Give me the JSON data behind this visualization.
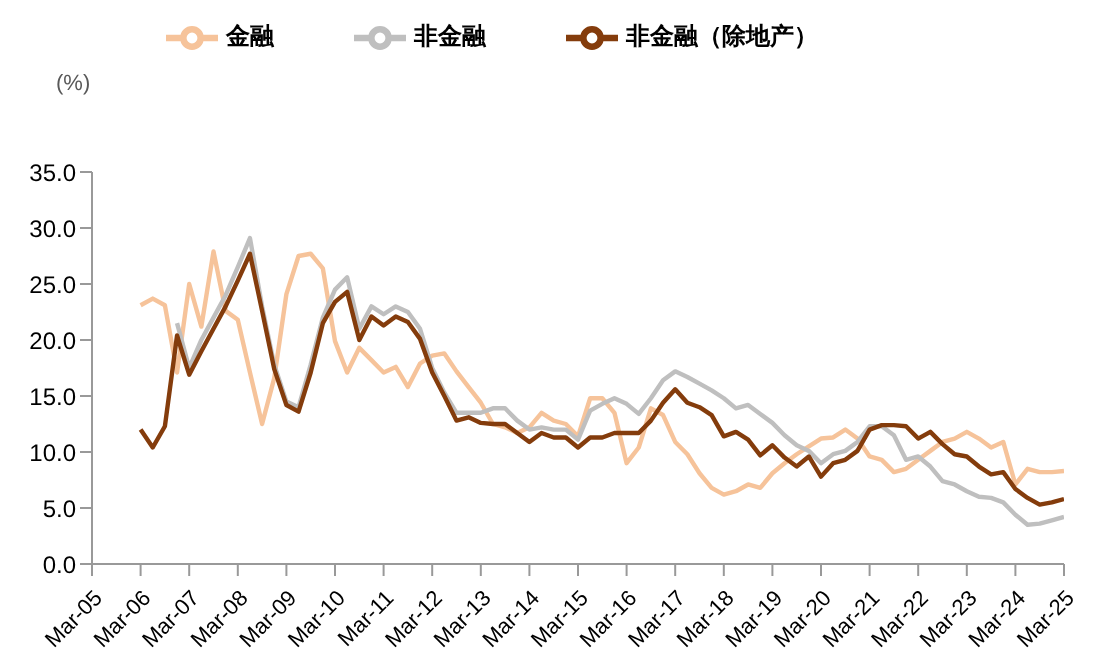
{
  "chart_data": {
    "type": "line",
    "ylabel": "(%)",
    "legend": "top",
    "grid": false,
    "marker": "none",
    "line_style": "solid",
    "x": [
      "2006-03",
      "2006-06",
      "2006-09",
      "2006-12",
      "2007-03",
      "2007-06",
      "2007-09",
      "2007-12",
      "2008-03",
      "2008-06",
      "2008-09",
      "2008-12",
      "2009-03",
      "2009-06",
      "2009-09",
      "2009-12",
      "2010-03",
      "2010-06",
      "2010-09",
      "2010-12",
      "2011-03",
      "2011-06",
      "2011-09",
      "2011-12",
      "2012-03",
      "2012-06",
      "2012-09",
      "2012-12",
      "2013-03",
      "2013-06",
      "2013-09",
      "2013-12",
      "2014-03",
      "2014-06",
      "2014-09",
      "2014-12",
      "2015-03",
      "2015-06",
      "2015-09",
      "2015-12",
      "2016-03",
      "2016-06",
      "2016-09",
      "2016-12",
      "2017-03",
      "2017-06",
      "2017-09",
      "2017-12",
      "2018-03",
      "2018-06",
      "2018-09",
      "2018-12",
      "2019-03",
      "2019-06",
      "2019-09",
      "2019-12",
      "2020-03",
      "2020-06",
      "2020-09",
      "2020-12",
      "2021-03",
      "2021-06",
      "2021-09",
      "2021-12",
      "2022-03",
      "2022-06",
      "2022-09",
      "2022-12",
      "2023-03",
      "2023-06",
      "2023-09",
      "2023-12",
      "2024-03",
      "2024-06",
      "2024-09",
      "2024-12",
      "2025-03"
    ],
    "xlim": [
      "2005-03",
      "2025-03"
    ],
    "xticks": [
      {
        "value": "2005-03",
        "label": "Mar-05"
      },
      {
        "value": "2006-03",
        "label": "Mar-06"
      },
      {
        "value": "2007-03",
        "label": "Mar-07"
      },
      {
        "value": "2008-03",
        "label": "Mar-08"
      },
      {
        "value": "2009-03",
        "label": "Mar-09"
      },
      {
        "value": "2010-03",
        "label": "Mar-10"
      },
      {
        "value": "2011-03",
        "label": "Mar-11"
      },
      {
        "value": "2012-03",
        "label": "Mar-12"
      },
      {
        "value": "2013-03",
        "label": "Mar-13"
      },
      {
        "value": "2014-03",
        "label": "Mar-14"
      },
      {
        "value": "2015-03",
        "label": "Mar-15"
      },
      {
        "value": "2016-03",
        "label": "Mar-16"
      },
      {
        "value": "2017-03",
        "label": "Mar-17"
      },
      {
        "value": "2018-03",
        "label": "Mar-18"
      },
      {
        "value": "2019-03",
        "label": "Mar-19"
      },
      {
        "value": "2020-03",
        "label": "Mar-20"
      },
      {
        "value": "2021-03",
        "label": "Mar-21"
      },
      {
        "value": "2022-03",
        "label": "Mar-22"
      },
      {
        "value": "2023-03",
        "label": "Mar-23"
      },
      {
        "value": "2024-03",
        "label": "Mar-24"
      },
      {
        "value": "2025-03",
        "label": "Mar-25"
      }
    ],
    "ylim": [
      0,
      35
    ],
    "yticks": [
      {
        "value": 0,
        "label": "0.0"
      },
      {
        "value": 5,
        "label": "5.0"
      },
      {
        "value": 10,
        "label": "10.0"
      },
      {
        "value": 15,
        "label": "15.0"
      },
      {
        "value": 20,
        "label": "20.0"
      },
      {
        "value": 25,
        "label": "25.0"
      },
      {
        "value": 30,
        "label": "30.0"
      },
      {
        "value": 35,
        "label": "35.0"
      }
    ],
    "series": [
      {
        "name": "金融",
        "color": "#f6c39a",
        "values": [
          23.1,
          23.7,
          23.1,
          17.1,
          25.0,
          21.2,
          27.9,
          22.6,
          21.8,
          17.1,
          12.5,
          16.6,
          24.1,
          27.5,
          27.7,
          26.4,
          19.9,
          17.1,
          19.3,
          18.2,
          17.1,
          17.6,
          15.8,
          17.9,
          18.6,
          18.8,
          17.2,
          15.8,
          14.4,
          12.5,
          12.2,
          11.7,
          12.2,
          13.5,
          12.8,
          12.5,
          11.4,
          14.8,
          14.8,
          13.5,
          9.0,
          10.4,
          13.9,
          13.3,
          10.9,
          9.8,
          8.1,
          6.8,
          6.2,
          6.5,
          7.1,
          6.8,
          8.1,
          9.0,
          9.8,
          10.5,
          11.2,
          11.3,
          12.0,
          11.2,
          9.6,
          9.3,
          8.2,
          8.5,
          9.3,
          10.1,
          10.9,
          11.2,
          11.8,
          11.2,
          10.4,
          10.9,
          7.1,
          8.5,
          8.2,
          8.2,
          8.3
        ]
      },
      {
        "name": "非金融",
        "color": "#bfbfbf",
        "values": [
          null,
          null,
          null,
          21.5,
          17.5,
          20.0,
          22.0,
          24.0,
          26.5,
          29.1,
          23.0,
          17.8,
          14.5,
          14.0,
          17.8,
          22.0,
          24.5,
          25.6,
          21.0,
          23.0,
          22.3,
          23.0,
          22.5,
          21.0,
          17.5,
          15.3,
          13.5,
          13.5,
          13.5,
          13.9,
          13.9,
          12.8,
          12.0,
          12.2,
          12.0,
          12.0,
          11.1,
          13.7,
          14.3,
          14.8,
          14.3,
          13.4,
          14.8,
          16.4,
          17.2,
          16.7,
          16.1,
          15.5,
          14.8,
          13.9,
          14.2,
          13.4,
          12.6,
          11.5,
          10.6,
          10.1,
          9.0,
          9.8,
          10.1,
          10.9,
          12.3,
          12.3,
          11.5,
          9.3,
          9.6,
          8.7,
          7.4,
          7.1,
          6.5,
          6.0,
          5.9,
          5.5,
          4.4,
          3.5,
          3.6,
          3.9,
          4.2
        ]
      },
      {
        "name": "非金融（除地产）",
        "color": "#843c0c",
        "values": [
          12.0,
          10.4,
          12.3,
          20.4,
          16.9,
          19.0,
          21.0,
          23.0,
          25.3,
          27.7,
          22.6,
          17.4,
          14.2,
          13.6,
          17.1,
          21.5,
          23.4,
          24.3,
          20.0,
          22.1,
          21.3,
          22.1,
          21.6,
          20.1,
          17.1,
          15.0,
          12.8,
          13.1,
          12.6,
          12.5,
          12.5,
          11.7,
          10.9,
          11.7,
          11.3,
          11.3,
          10.4,
          11.3,
          11.3,
          11.7,
          11.7,
          11.7,
          12.8,
          14.4,
          15.6,
          14.4,
          14.0,
          13.3,
          11.4,
          11.8,
          11.1,
          9.7,
          10.6,
          9.5,
          8.7,
          9.6,
          7.8,
          9.0,
          9.3,
          10.1,
          12.0,
          12.4,
          12.4,
          12.3,
          11.2,
          11.8,
          10.7,
          9.8,
          9.6,
          8.7,
          8.0,
          8.2,
          6.7,
          5.9,
          5.3,
          5.5,
          5.8
        ]
      }
    ]
  }
}
